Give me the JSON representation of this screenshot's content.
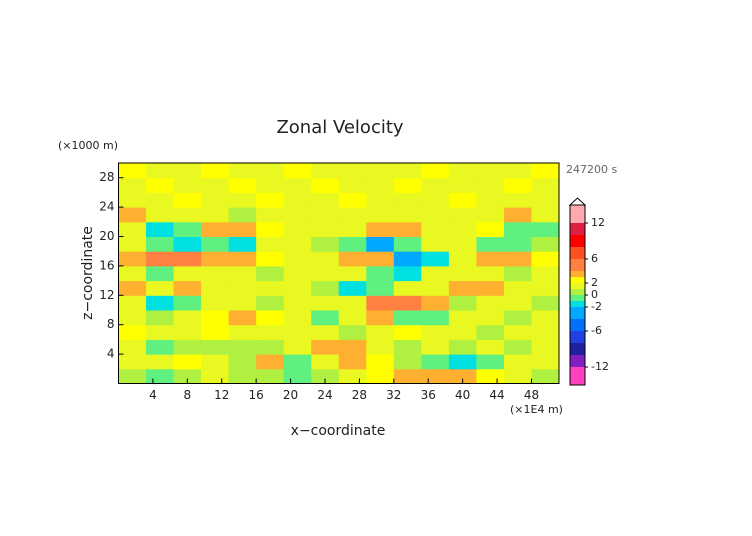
{
  "chart_data": {
    "type": "heatmap",
    "title": "Zonal Velocity",
    "y_unit": "(×1000 m)",
    "time_label": "247200 s",
    "x_label": "x−coordinate",
    "y_label": "z−coordinate",
    "x_unit": "(×1E4 m)",
    "xlim": [
      0,
      51.2
    ],
    "ylim": [
      0,
      30
    ],
    "xticks": [
      4,
      8,
      12,
      16,
      20,
      24,
      28,
      32,
      36,
      40,
      44,
      48
    ],
    "yticks": [
      4,
      8,
      12,
      16,
      20,
      24,
      28
    ],
    "x": [
      1.6,
      4.8,
      8,
      11.2,
      14.4,
      17.6,
      20.8,
      24,
      27.2,
      30.4,
      33.6,
      36.8,
      40,
      43.2,
      46.4,
      49.6
    ],
    "y": [
      1,
      3,
      5,
      7,
      9,
      11,
      13,
      15,
      17,
      19,
      21,
      23,
      25,
      27,
      29
    ],
    "z": [
      [
        0,
        -1,
        0,
        1,
        0.5,
        0,
        -1,
        0,
        1,
        2,
        3,
        3,
        3,
        2,
        1,
        0
      ],
      [
        1,
        1,
        2,
        1,
        0.5,
        3,
        -1,
        1,
        3,
        2,
        0,
        -1,
        -2,
        -1,
        1,
        1
      ],
      [
        1,
        -1,
        0,
        0,
        0.5,
        0,
        1,
        3,
        3,
        1,
        0,
        1,
        0,
        1,
        0,
        1
      ],
      [
        2,
        1,
        1,
        2,
        1,
        1,
        1,
        1,
        0.5,
        1,
        2,
        1,
        1,
        0.5,
        1,
        1
      ],
      [
        1,
        0.5,
        1,
        2,
        3,
        2,
        1,
        -1,
        1,
        3,
        -1,
        -1,
        1,
        1,
        0.5,
        1
      ],
      [
        1,
        -2,
        -1,
        1,
        1,
        0.5,
        1,
        1,
        1,
        5,
        5,
        3,
        0.5,
        1,
        1,
        0.5
      ],
      [
        3,
        1,
        3,
        1,
        1,
        1,
        1,
        0.5,
        -2,
        -1,
        1,
        1,
        3,
        3,
        1,
        1
      ],
      [
        1,
        -1,
        1,
        1,
        1,
        0.5,
        1,
        1,
        1,
        -1,
        -2,
        1,
        1,
        1,
        0.5,
        1
      ],
      [
        3,
        4,
        4,
        3,
        3,
        2,
        1,
        1,
        3,
        3,
        -3,
        -2,
        1,
        3,
        3,
        2
      ],
      [
        1,
        -1,
        -2,
        -1,
        -2,
        1,
        1,
        0.5,
        -1,
        -3,
        -1,
        1,
        1,
        -1,
        -1,
        0.5
      ],
      [
        1,
        -2,
        -1,
        3,
        3,
        2,
        1,
        1,
        1,
        3,
        3,
        1,
        1,
        2,
        -1,
        -1
      ],
      [
        3,
        1,
        1,
        1,
        0.5,
        1,
        1,
        1,
        1,
        1,
        1,
        1,
        1,
        1,
        3,
        1
      ],
      [
        1,
        1,
        2,
        1,
        1,
        2,
        1,
        1,
        2,
        1,
        1,
        1,
        2,
        1,
        1,
        1
      ],
      [
        1,
        2,
        1,
        1,
        2,
        1,
        1,
        2,
        1,
        1,
        2,
        1,
        1,
        1,
        2,
        1
      ],
      [
        2,
        1,
        1,
        2,
        1,
        1,
        2,
        1,
        1,
        1,
        1,
        2,
        1,
        1,
        1,
        2
      ]
    ],
    "clim": [
      -15,
      15
    ],
    "levels": [
      -15,
      -12,
      -10,
      -8,
      -6,
      -4,
      -2,
      -1,
      0,
      1,
      2,
      3,
      4,
      6,
      8,
      10,
      12,
      15
    ],
    "colors": [
      "#ff40c0",
      "#8020c0",
      "#2020a0",
      "#2040e0",
      "#0070ff",
      "#00a8ff",
      "#00e0e0",
      "#60f080",
      "#b0f040",
      "#e8f820",
      "#ffff00",
      "#ffb030",
      "#ff8040",
      "#ff5020",
      "#ff0000",
      "#e02040",
      "#ffa8b0"
    ],
    "cticks": [
      12,
      6,
      2,
      0,
      -2,
      -6,
      -12
    ]
  }
}
